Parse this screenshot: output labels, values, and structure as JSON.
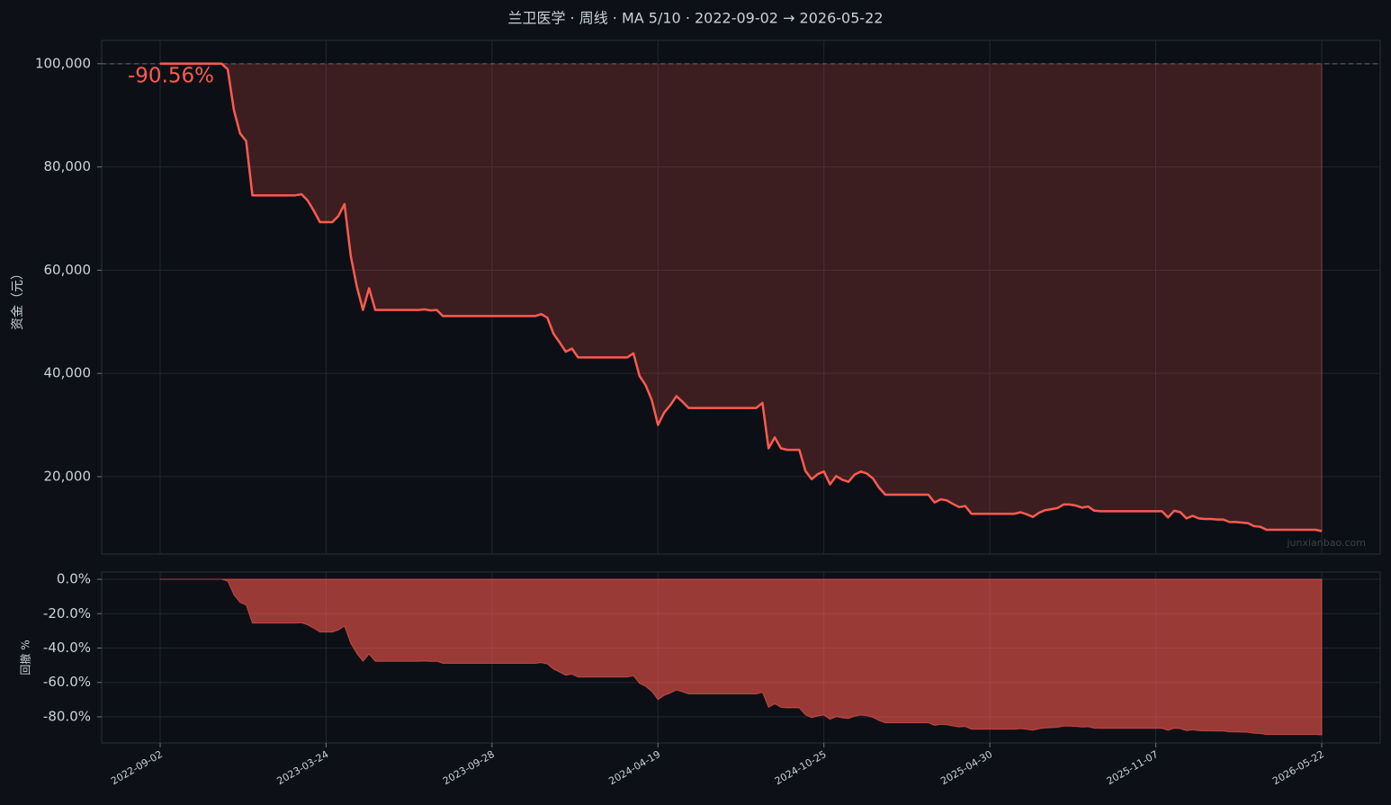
{
  "chart_data": [
    {
      "type": "line",
      "title": "兰卫医学 · 周线 · MA 5/10 · 2022-09-02 → 2026-05-22",
      "ylabel": "资金（元）",
      "annotation": "-90.56%",
      "watermark": "junxianbao.com",
      "color": "#ff5a4f",
      "reference_line": 100000,
      "grid": true,
      "ylim": [
        5000,
        104500
      ],
      "yticks": [
        {
          "value": 20000,
          "label": "20,000"
        },
        {
          "value": 40000,
          "label": "40,000"
        },
        {
          "value": 60000,
          "label": "60,000"
        },
        {
          "value": 80000,
          "label": "80,000"
        },
        {
          "value": 100000,
          "label": "100,000"
        }
      ],
      "values": [
        100000,
        100000,
        100000,
        100000,
        100000,
        100000,
        100000,
        100000,
        100000,
        100000,
        100000,
        98900,
        91000,
        86500,
        85000,
        74500,
        74500,
        74500,
        74500,
        74500,
        74500,
        74500,
        74500,
        74700,
        73500,
        71500,
        69300,
        69300,
        69300,
        70500,
        72800,
        62800,
        56800,
        52300,
        56500,
        52300,
        52300,
        52300,
        52300,
        52300,
        52300,
        52300,
        52300,
        52400,
        52200,
        52300,
        51100,
        51100,
        51100,
        51100,
        51100,
        51100,
        51100,
        51100,
        51100,
        51100,
        51100,
        51100,
        51100,
        51100,
        51100,
        51100,
        51500,
        50800,
        47700,
        46000,
        44200,
        44800,
        43100,
        43100,
        43100,
        43100,
        43100,
        43100,
        43100,
        43100,
        43100,
        43900,
        39500,
        37700,
        34800,
        30000,
        32400,
        33800,
        35600,
        34500,
        33300,
        33300,
        33300,
        33300,
        33300,
        33300,
        33300,
        33300,
        33300,
        33300,
        33300,
        33300,
        34300,
        25500,
        27600,
        25500,
        25200,
        25200,
        25200,
        21100,
        19500,
        20500,
        21000,
        18500,
        20100,
        19400,
        19000,
        20400,
        21000,
        20600,
        19600,
        17800,
        16500,
        16500,
        16500,
        16500,
        16500,
        16500,
        16500,
        16500,
        15000,
        15600,
        15400,
        14700,
        14100,
        14300,
        12800,
        12800,
        12800,
        12800,
        12800,
        12800,
        12800,
        12800,
        13100,
        12700,
        12200,
        13000,
        13500,
        13700,
        13900,
        14600,
        14600,
        14400,
        14000,
        14200,
        13400,
        13300,
        13300,
        13300,
        13300,
        13300,
        13300,
        13300,
        13300,
        13300,
        13300,
        13300,
        12100,
        13400,
        13100,
        11900,
        12400,
        11900,
        11800,
        11800,
        11700,
        11700,
        11200,
        11200,
        11100,
        11000,
        10400,
        10300,
        9700,
        9700,
        9700,
        9700,
        9700,
        9700,
        9700,
        9700,
        9700,
        9444
      ]
    },
    {
      "type": "area",
      "ylabel": "回撤 %",
      "color": "#ff5a4f",
      "grid": true,
      "ylim": [
        -95.2,
        4.2
      ],
      "yticks": [
        {
          "value": -80,
          "label": "-80.0%"
        },
        {
          "value": -60,
          "label": "-60.0%"
        },
        {
          "value": -40,
          "label": "-40.0%"
        },
        {
          "value": -20,
          "label": "-20.0%"
        },
        {
          "value": 0,
          "label": "0.0%"
        }
      ],
      "categories": [
        "2022-09-02",
        null,
        null,
        null,
        null,
        null,
        null,
        null,
        null,
        null,
        null,
        null,
        null,
        null,
        null,
        null,
        null,
        null,
        null,
        null,
        null,
        null,
        null,
        null,
        null,
        null,
        null,
        "2023-03-24",
        null,
        null,
        null,
        null,
        null,
        null,
        null,
        null,
        null,
        null,
        null,
        null,
        null,
        null,
        null,
        null,
        null,
        null,
        null,
        null,
        null,
        null,
        null,
        null,
        null,
        null,
        "2023-09-28",
        null,
        null,
        null,
        null,
        null,
        null,
        null,
        null,
        null,
        null,
        null,
        null,
        null,
        null,
        null,
        null,
        null,
        null,
        null,
        null,
        null,
        null,
        null,
        null,
        null,
        null,
        "2024-04-19",
        null,
        null,
        null,
        null,
        null,
        null,
        null,
        null,
        null,
        null,
        null,
        null,
        null,
        null,
        null,
        null,
        null,
        null,
        null,
        null,
        null,
        null,
        null,
        null,
        null,
        null,
        "2024-10-25",
        null,
        null,
        null,
        null,
        null,
        null,
        null,
        null,
        null,
        null,
        null,
        null,
        null,
        null,
        null,
        null,
        null,
        null,
        null,
        null,
        null,
        null,
        null,
        null,
        null,
        null,
        "2025-04-30",
        null,
        null,
        null,
        null,
        null,
        null,
        null,
        null,
        null,
        null,
        null,
        null,
        null,
        null,
        null,
        null,
        null,
        null,
        null,
        null,
        null,
        null,
        null,
        null,
        null,
        null,
        "2025-11-07",
        null,
        null,
        null,
        null,
        null,
        null,
        null,
        null,
        null,
        null,
        null,
        null,
        null,
        null,
        null,
        null,
        null,
        null,
        null,
        null,
        null,
        null,
        null,
        null,
        null,
        null,
        "2026-05-22"
      ],
      "values": [
        0,
        0,
        0,
        0,
        0,
        0,
        0,
        0,
        0,
        0,
        0,
        -1.1,
        -9,
        -13.5,
        -15,
        -25.5,
        -25.5,
        -25.5,
        -25.5,
        -25.5,
        -25.5,
        -25.5,
        -25.5,
        -25.3,
        -26.5,
        -28.5,
        -30.7,
        -30.7,
        -30.7,
        -29.5,
        -27.2,
        -37.2,
        -43.2,
        -47.7,
        -43.5,
        -47.7,
        -47.7,
        -47.7,
        -47.7,
        -47.7,
        -47.7,
        -47.7,
        -47.7,
        -47.6,
        -47.8,
        -47.7,
        -48.9,
        -48.9,
        -48.9,
        -48.9,
        -48.9,
        -48.9,
        -48.9,
        -48.9,
        -48.9,
        -48.9,
        -48.9,
        -48.9,
        -48.9,
        -48.9,
        -48.9,
        -48.9,
        -48.5,
        -49.2,
        -52.3,
        -54,
        -55.8,
        -55.2,
        -56.9,
        -56.9,
        -56.9,
        -56.9,
        -56.9,
        -56.9,
        -56.9,
        -56.9,
        -56.9,
        -56.1,
        -60.5,
        -62.3,
        -65.2,
        -70,
        -67.6,
        -66.2,
        -64.4,
        -65.5,
        -66.7,
        -66.7,
        -66.7,
        -66.7,
        -66.7,
        -66.7,
        -66.7,
        -66.7,
        -66.7,
        -66.7,
        -66.7,
        -66.7,
        -65.7,
        -74.5,
        -72.4,
        -74.5,
        -74.8,
        -74.8,
        -74.8,
        -78.9,
        -80.5,
        -79.5,
        -79,
        -81.5,
        -79.9,
        -80.6,
        -81,
        -79.6,
        -79,
        -79.4,
        -80.4,
        -82.2,
        -83.5,
        -83.5,
        -83.5,
        -83.5,
        -83.5,
        -83.5,
        -83.5,
        -83.5,
        -85,
        -84.4,
        -84.6,
        -85.3,
        -85.9,
        -85.7,
        -87.2,
        -87.2,
        -87.2,
        -87.2,
        -87.2,
        -87.2,
        -87.2,
        -87.2,
        -86.9,
        -87.3,
        -87.8,
        -87,
        -86.5,
        -86.3,
        -86.1,
        -85.4,
        -85.4,
        -85.6,
        -86,
        -85.8,
        -86.6,
        -86.7,
        -86.7,
        -86.7,
        -86.7,
        -86.7,
        -86.7,
        -86.7,
        -86.7,
        -86.7,
        -86.7,
        -86.7,
        -87.9,
        -86.6,
        -86.9,
        -88.1,
        -87.6,
        -88.1,
        -88.2,
        -88.2,
        -88.3,
        -88.3,
        -88.8,
        -88.8,
        -88.9,
        -89,
        -89.6,
        -89.7,
        -90.3,
        -90.3,
        -90.3,
        -90.3,
        -90.3,
        -90.3,
        -90.3,
        -90.3,
        -90.3,
        -90.56
      ]
    }
  ]
}
